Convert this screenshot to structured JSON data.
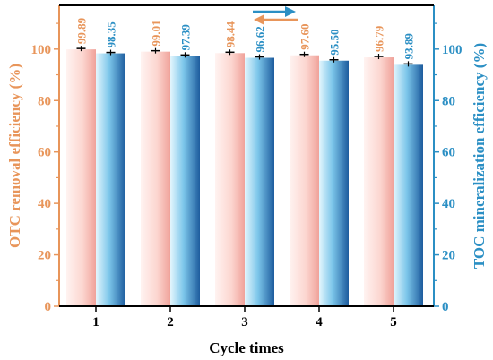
{
  "chart_data": {
    "type": "bar",
    "categories": [
      "1",
      "2",
      "3",
      "4",
      "5"
    ],
    "xlabel": "Cycle times",
    "ylabel_left": "OTC removal efficiency (%)",
    "ylabel_right": "TOC mineralization efficiency (%)",
    "ylim": [
      0,
      117
    ],
    "yticks": [
      0,
      20,
      40,
      60,
      80,
      100
    ],
    "ylim_right": [
      0,
      117
    ],
    "yticks_right": [
      0,
      20,
      40,
      60,
      80,
      100
    ],
    "grid": false,
    "series": [
      {
        "values": [
          99.89,
          99.01,
          98.44,
          97.6,
          96.79
        ],
        "labels": [
          "99.89",
          "99.01",
          "98.44",
          "97.60",
          "96.79"
        ],
        "axis": "left",
        "color": "#e8955a",
        "fill_light": "#fde4e0",
        "fill_dark": "#f1a7a0"
      },
      {
        "values": [
          98.35,
          97.39,
          96.62,
          95.5,
          93.89
        ],
        "labels": [
          "98.35",
          "97.39",
          "96.62",
          "95.50",
          "93.89"
        ],
        "axis": "right",
        "color": "#2b8fc4",
        "fill_light": "#d9f0fb",
        "fill_dark": "#1d5fa0"
      }
    ],
    "arrows": [
      {
        "direction": "right",
        "color": "#2b8fc4"
      },
      {
        "direction": "left",
        "color": "#e8955a"
      }
    ]
  }
}
